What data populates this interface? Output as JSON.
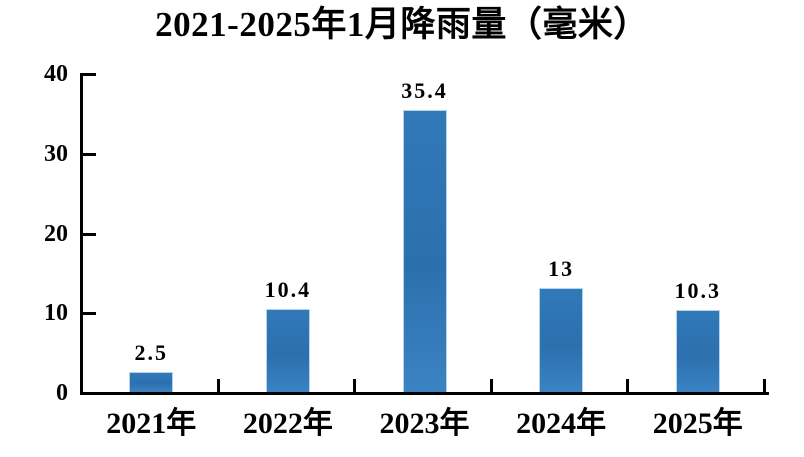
{
  "chart_data": {
    "type": "bar",
    "title": "2021-2025年1月降雨量（毫米）",
    "categories": [
      "2021年",
      "2022年",
      "2023年",
      "2024年",
      "2025年"
    ],
    "values": [
      2.5,
      10.4,
      35.4,
      13,
      10.3
    ],
    "value_labels": [
      "2.5",
      "10.4",
      "35.4",
      "13",
      "10.3"
    ],
    "xlabel": "",
    "ylabel": "",
    "ylim": [
      0,
      40
    ],
    "yticks": [
      0,
      10,
      20,
      30,
      40
    ],
    "ytick_labels": [
      "0",
      "10",
      "20",
      "30",
      "40"
    ],
    "grid": false,
    "legend_position": "none",
    "colors": {
      "background": "#ffffff",
      "text": "#000000",
      "axis": "#000000",
      "bar_gradient_top": "#3179b9",
      "bar_gradient_mid": "#2c6fae",
      "bar_gradient_bottom": "#3b83c3",
      "bar_highlight_edge": "#b9d3e8"
    }
  }
}
